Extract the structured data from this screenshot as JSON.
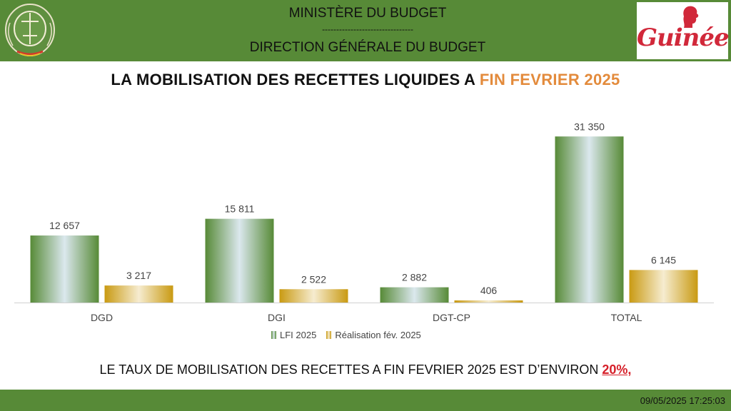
{
  "header": {
    "line1": "MINISTÈRE DU BUDGET",
    "dashes": "--------------------------------",
    "line2": "DIRECTION GÉNÉRALE DU BUDGET",
    "logo_text": "Guinée"
  },
  "title": {
    "part1": "LA MOBILISATION DES RECETTES LIQUIDES A ",
    "part2": "FIN FEVRIER 2025"
  },
  "conclusion": {
    "text": "LE  TAUX DE MOBILISATION DES RECETTES A FIN FEVRIER 2025 EST D’ENVIRON ",
    "rate": "20%,"
  },
  "footer": {
    "timestamp": "09/05/2025 17:25:03"
  },
  "colors": {
    "green": "#578a37",
    "gold": "#c99a12",
    "highlight_orange": "#e38b3c",
    "rate_red": "#d6202a"
  },
  "chart_data": {
    "type": "bar",
    "categories": [
      "DGD",
      "DGI",
      "DGT-CP",
      "TOTAL"
    ],
    "series": [
      {
        "name": "LFI 2025",
        "values": [
          12657,
          15811,
          2882,
          31350
        ],
        "labels": [
          "12 657",
          "15 811",
          "2 882",
          "31 350"
        ],
        "color": "#578a37"
      },
      {
        "name": "Réalisation fév. 2025",
        "values": [
          3217,
          2522,
          406,
          6145
        ],
        "labels": [
          "3 217",
          "2 522",
          "406",
          "6 145"
        ],
        "color": "#c99a12"
      }
    ],
    "ylim": [
      0,
      33000
    ],
    "legend_position": "bottom",
    "grid": false
  }
}
